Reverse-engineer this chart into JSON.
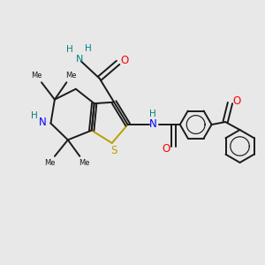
{
  "bg_color": "#e8e8e8",
  "bond_color": "#1a1a1a",
  "S_color": "#b8a000",
  "N_color": "#0000ff",
  "NH_color": "#008080",
  "O_color": "#ff0000",
  "figsize": [
    3.0,
    3.0
  ],
  "dpi": 100,
  "xlim": [
    0,
    10
  ],
  "ylim": [
    0,
    10
  ]
}
